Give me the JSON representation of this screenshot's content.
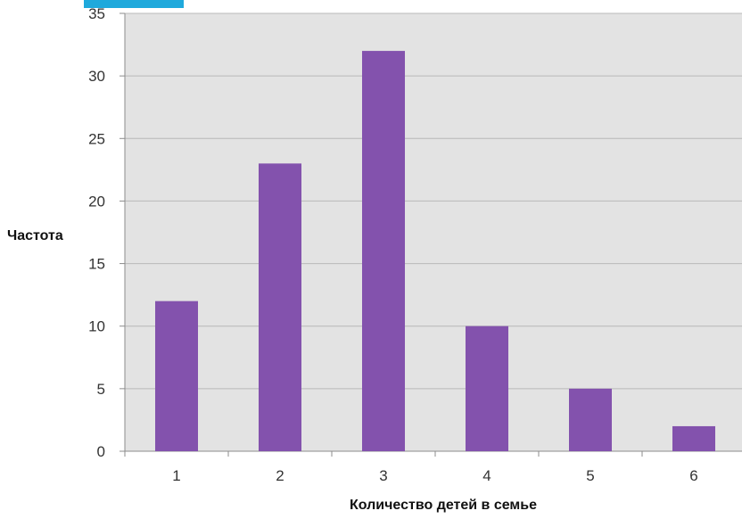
{
  "chart_data": {
    "type": "bar",
    "categories": [
      "1",
      "2",
      "3",
      "4",
      "5",
      "6"
    ],
    "values": [
      12,
      23,
      32,
      10,
      5,
      2
    ],
    "xlabel": "Количество детей в семье",
    "ylabel": "Частота",
    "ylim": [
      0,
      35
    ],
    "yticks": [
      "0",
      "5",
      "10",
      "15",
      "20",
      "25",
      "30",
      "35"
    ],
    "grid": true,
    "legend": "none",
    "colors": {
      "bar": "#8352ad",
      "plot_background": "#e3e3e3",
      "gridline": "#b8b8b8",
      "accent_tab": "#1fa9dc"
    }
  }
}
